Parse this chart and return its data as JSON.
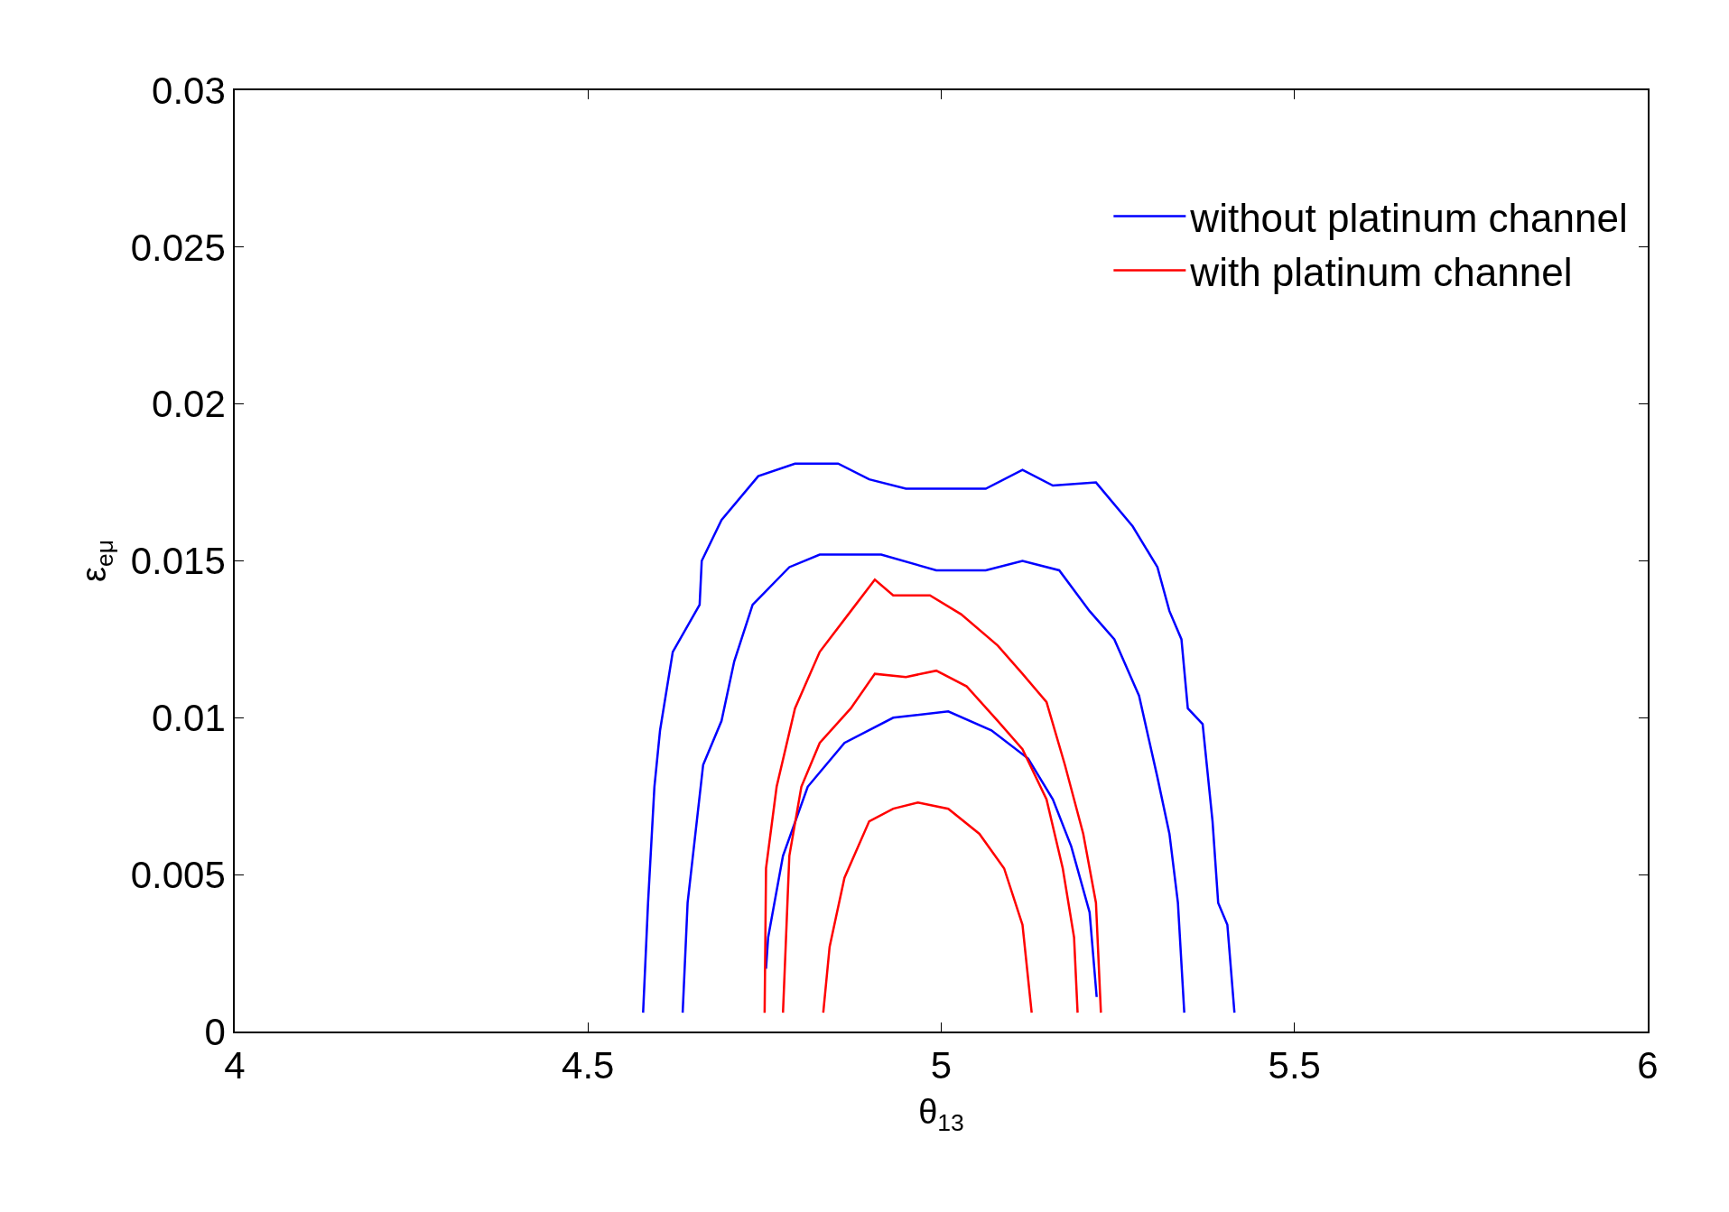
{
  "chart_data": {
    "type": "line",
    "xlabel": "θ$_{13}$",
    "ylabel": "ε$_{eμ}$",
    "xlim": [
      4,
      6
    ],
    "ylim": [
      0,
      0.03
    ],
    "xticks": [
      4,
      4.5,
      5,
      5.5,
      6
    ],
    "yticks": [
      0,
      0.005,
      0.01,
      0.015,
      0.02,
      0.025,
      0.03
    ],
    "legend": "top right",
    "marker": "none",
    "line_style": "solid",
    "series": [
      {
        "name": "without platinum channel",
        "color": "#0000ff",
        "x": [
          4.578,
          4.585,
          4.594,
          4.602,
          4.62,
          4.658,
          4.661,
          4.689,
          4.741,
          4.793,
          4.854,
          4.898,
          4.95,
          5.063,
          5.115,
          5.158,
          5.219,
          5.271,
          5.306,
          5.323,
          5.34,
          5.349,
          5.37,
          5.384,
          5.392,
          5.405,
          5.415
        ],
        "values": [
          0.0006,
          0.0041,
          0.0078,
          0.0096,
          0.0121,
          0.0136,
          0.015,
          0.0163,
          0.0177,
          0.0181,
          0.0181,
          0.0176,
          0.0173,
          0.0173,
          0.0179,
          0.0174,
          0.0175,
          0.0161,
          0.0148,
          0.0134,
          0.0125,
          0.0103,
          0.0098,
          0.0067,
          0.0041,
          0.0034,
          0.0006
        ]
      },
      {
        "color": "#0000ff",
        "x": [
          4.634,
          4.641,
          4.663,
          4.689,
          4.707,
          4.733,
          4.785,
          4.828,
          4.915,
          4.993,
          5.063,
          5.115,
          5.167,
          5.21,
          5.245,
          5.28,
          5.306,
          5.323,
          5.335,
          5.344
        ],
        "values": [
          0.0006,
          0.0041,
          0.0085,
          0.0099,
          0.0118,
          0.0136,
          0.0148,
          0.0152,
          0.0152,
          0.0147,
          0.0147,
          0.015,
          0.0147,
          0.0134,
          0.0125,
          0.0107,
          0.0081,
          0.0063,
          0.0041,
          0.0006
        ]
      },
      {
        "color": "#0000ff",
        "x": [
          4.752,
          4.755,
          4.776,
          4.811,
          4.863,
          4.932,
          5.01,
          5.071,
          5.123,
          5.158,
          5.184,
          5.21,
          5.22
        ],
        "values": [
          0.002,
          0.003,
          0.0056,
          0.0078,
          0.0092,
          0.01,
          0.0102,
          0.0096,
          0.0087,
          0.0074,
          0.0059,
          0.0038,
          0.0011
        ]
      },
      {
        "name": "with platinum channel",
        "color": "#ff0000",
        "x": [
          4.75,
          4.752,
          4.767,
          4.793,
          4.828,
          4.872,
          4.906,
          4.932,
          4.984,
          5.028,
          5.08,
          5.115,
          5.149,
          5.175,
          5.201,
          5.219,
          5.226
        ],
        "values": [
          0.0006,
          0.0052,
          0.0078,
          0.0103,
          0.0121,
          0.0134,
          0.0144,
          0.0139,
          0.0139,
          0.0133,
          0.0123,
          0.0114,
          0.0105,
          0.0085,
          0.0063,
          0.0041,
          0.0006
        ]
      },
      {
        "color": "#ff0000",
        "x": [
          4.776,
          4.785,
          4.802,
          4.828,
          4.872,
          4.906,
          4.95,
          4.993,
          5.036,
          5.08,
          5.115,
          5.149,
          5.172,
          5.188,
          5.193
        ],
        "values": [
          0.0006,
          0.0056,
          0.0078,
          0.0092,
          0.0103,
          0.0114,
          0.0113,
          0.0115,
          0.011,
          0.0099,
          0.009,
          0.0074,
          0.0052,
          0.003,
          0.0006
        ]
      },
      {
        "color": "#ff0000",
        "x": [
          4.833,
          4.842,
          4.863,
          4.898,
          4.932,
          4.967,
          5.01,
          5.054,
          5.089,
          5.115,
          5.128
        ],
        "values": [
          0.0006,
          0.0027,
          0.0049,
          0.0067,
          0.0071,
          0.0073,
          0.0071,
          0.0063,
          0.0052,
          0.0034,
          0.0006
        ]
      }
    ]
  }
}
